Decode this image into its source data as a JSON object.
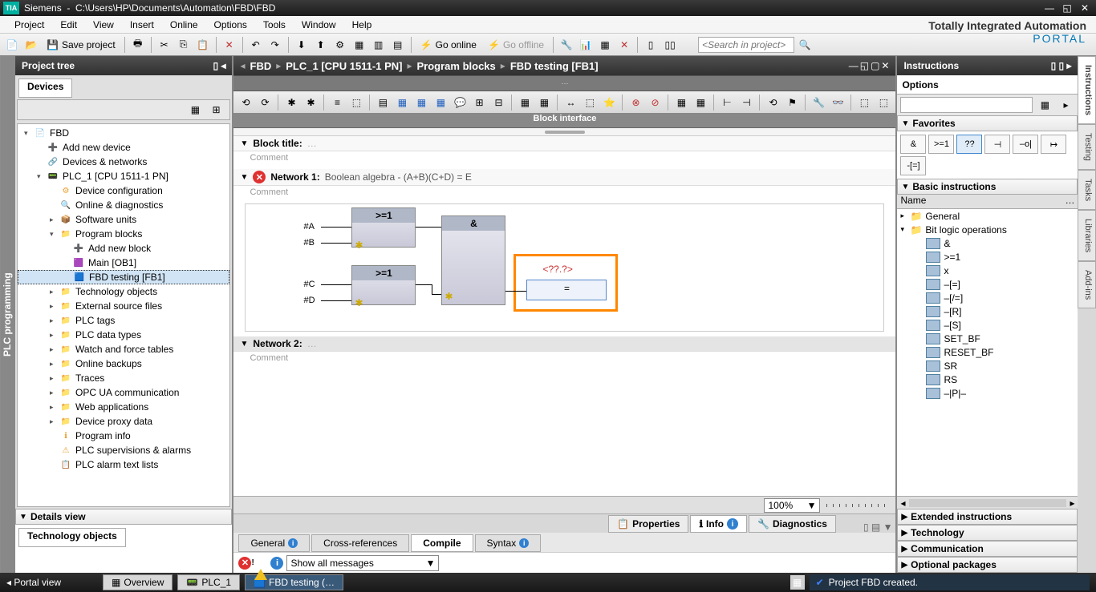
{
  "titlebar": {
    "app": "Siemens",
    "path": "C:\\Users\\HP\\Documents\\Automation\\FBD\\FBD"
  },
  "menu": [
    "Project",
    "Edit",
    "View",
    "Insert",
    "Online",
    "Options",
    "Tools",
    "Window",
    "Help"
  ],
  "brand": {
    "line1": "Totally Integrated Automation",
    "line2": "PORTAL"
  },
  "toolbar": {
    "save": "Save project",
    "goonline": "Go online",
    "gooffline": "Go offline",
    "search_ph": "<Search in project>"
  },
  "left": {
    "panel_title": "Project tree",
    "tab": "Devices",
    "side_label": "PLC programming",
    "details": "Details view",
    "tech_tab": "Technology objects",
    "tree": [
      {
        "l": 0,
        "i": "📄",
        "t": "FBD",
        "a": "▾"
      },
      {
        "l": 1,
        "i": "➕",
        "t": "Add new device"
      },
      {
        "l": 1,
        "i": "🔗",
        "t": "Devices & networks"
      },
      {
        "l": 1,
        "i": "📟",
        "t": "PLC_1 [CPU 1511-1 PN]",
        "a": "▾"
      },
      {
        "l": 2,
        "i": "⚙",
        "t": "Device configuration"
      },
      {
        "l": 2,
        "i": "🔍",
        "t": "Online & diagnostics"
      },
      {
        "l": 2,
        "i": "📦",
        "t": "Software units",
        "a": "▸"
      },
      {
        "l": 2,
        "i": "📁",
        "t": "Program blocks",
        "a": "▾"
      },
      {
        "l": 3,
        "i": "➕",
        "t": "Add new block"
      },
      {
        "l": 3,
        "i": "🟪",
        "t": "Main [OB1]"
      },
      {
        "l": 3,
        "i": "🟦",
        "t": "FBD testing [FB1]",
        "sel": true
      },
      {
        "l": 2,
        "i": "📁",
        "t": "Technology objects",
        "a": "▸"
      },
      {
        "l": 2,
        "i": "📁",
        "t": "External source files",
        "a": "▸"
      },
      {
        "l": 2,
        "i": "📁",
        "t": "PLC tags",
        "a": "▸"
      },
      {
        "l": 2,
        "i": "📁",
        "t": "PLC data types",
        "a": "▸"
      },
      {
        "l": 2,
        "i": "📁",
        "t": "Watch and force tables",
        "a": "▸"
      },
      {
        "l": 2,
        "i": "📁",
        "t": "Online backups",
        "a": "▸"
      },
      {
        "l": 2,
        "i": "📁",
        "t": "Traces",
        "a": "▸"
      },
      {
        "l": 2,
        "i": "📁",
        "t": "OPC UA communication",
        "a": "▸"
      },
      {
        "l": 2,
        "i": "📁",
        "t": "Web applications",
        "a": "▸"
      },
      {
        "l": 2,
        "i": "📁",
        "t": "Device proxy data",
        "a": "▸"
      },
      {
        "l": 2,
        "i": "ℹ",
        "t": "Program info"
      },
      {
        "l": 2,
        "i": "⚠",
        "t": "PLC supervisions & alarms"
      },
      {
        "l": 2,
        "i": "📋",
        "t": "PLC alarm text lists"
      }
    ]
  },
  "center": {
    "crumbs": [
      "FBD",
      "PLC_1 [CPU 1511-1 PN]",
      "Program blocks",
      "FBD testing [FB1]"
    ],
    "iface": "Block interface",
    "block_title_label": "Block title:",
    "comment": "Comment",
    "net1": {
      "title": "Network 1:",
      "sub": "Boolean algebra - (A+B)(C+D) = E"
    },
    "net2": {
      "title": "Network 2:"
    },
    "fbd": {
      "ge1": ">=1",
      "and": "&",
      "assign": "=",
      "unk": "<??.?>",
      "inputs": [
        "#A",
        "#B",
        "#C",
        "#D"
      ]
    },
    "zoom": "100%",
    "prop_tabs": {
      "props": "Properties",
      "info": "Info",
      "diag": "Diagnostics"
    },
    "sub_tabs": {
      "gen": "General",
      "cross": "Cross-references",
      "compile": "Compile",
      "syntax": "Syntax"
    },
    "msg_filter": "Show all messages"
  },
  "right": {
    "title": "Instructions",
    "options": "Options",
    "fav_title": "Favorites",
    "fav": [
      "&",
      ">=1",
      "??",
      "⊣",
      "–o|",
      "↦",
      "-[=]"
    ],
    "basic_title": "Basic instructions",
    "col_name": "Name",
    "groups": [
      {
        "l": 0,
        "t": "General",
        "a": "▸",
        "folder": true
      },
      {
        "l": 0,
        "t": "Bit logic operations",
        "a": "▾",
        "folder": true
      },
      {
        "l": 1,
        "t": "&"
      },
      {
        "l": 1,
        "t": ">=1"
      },
      {
        "l": 1,
        "t": "x"
      },
      {
        "l": 1,
        "t": "–[=]"
      },
      {
        "l": 1,
        "t": "–[/=]"
      },
      {
        "l": 1,
        "t": "–[R]"
      },
      {
        "l": 1,
        "t": "–[S]"
      },
      {
        "l": 1,
        "t": "SET_BF"
      },
      {
        "l": 1,
        "t": "RESET_BF"
      },
      {
        "l": 1,
        "t": "SR"
      },
      {
        "l": 1,
        "t": "RS"
      },
      {
        "l": 1,
        "t": "–|P|–"
      }
    ],
    "sections": [
      "Extended instructions",
      "Technology",
      "Communication",
      "Optional packages"
    ],
    "vtabs": [
      "Instructions",
      "Testing",
      "Tasks",
      "Libraries",
      "Add-ins"
    ]
  },
  "status": {
    "portal": "Portal view",
    "overview": "Overview",
    "plc": "PLC_1",
    "fbd": "FBD testing (…",
    "msg": "Project FBD created."
  },
  "colors": {
    "accent_orange": "#ff8800",
    "error_red": "#e03030",
    "info_blue": "#3080d0",
    "siemens_teal": "#009999"
  }
}
